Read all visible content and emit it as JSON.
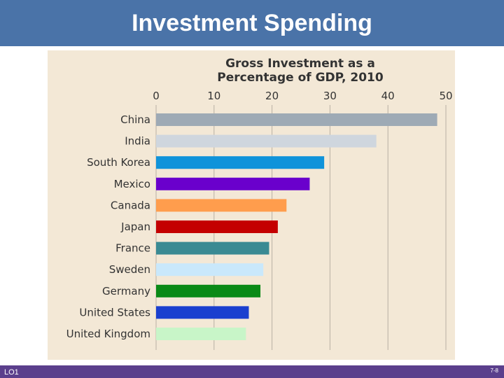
{
  "slide": {
    "title": "Investment Spending",
    "lo": "LO1",
    "page": "7-8"
  },
  "colors": {
    "title_bar": "#4a73a8",
    "footer_bar": "#5b3f8c",
    "chart_bg": "#f3e8d6"
  },
  "chart_data": {
    "type": "bar",
    "orientation": "horizontal",
    "title": "Gross Investment as a",
    "subtitle": "Percentage of GDP, 2010",
    "xlabel": "",
    "ylabel": "",
    "xlim": [
      0,
      50
    ],
    "x_ticks": [
      0,
      10,
      20,
      30,
      40,
      50
    ],
    "grid": true,
    "categories": [
      "China",
      "India",
      "South Korea",
      "Mexico",
      "Canada",
      "Japan",
      "France",
      "Sweden",
      "Germany",
      "United States",
      "United Kingdom"
    ],
    "values": [
      48.5,
      38,
      29,
      26.5,
      22.5,
      21,
      19.5,
      18.5,
      18,
      16,
      15.5
    ],
    "bar_colors": [
      "#9eaab5",
      "#cfd6de",
      "#0f93da",
      "#6a00cc",
      "#ff9d4d",
      "#c40000",
      "#3a8a93",
      "#c9e8fb",
      "#0a8a16",
      "#1a3fcf",
      "#c8f5c8"
    ]
  }
}
